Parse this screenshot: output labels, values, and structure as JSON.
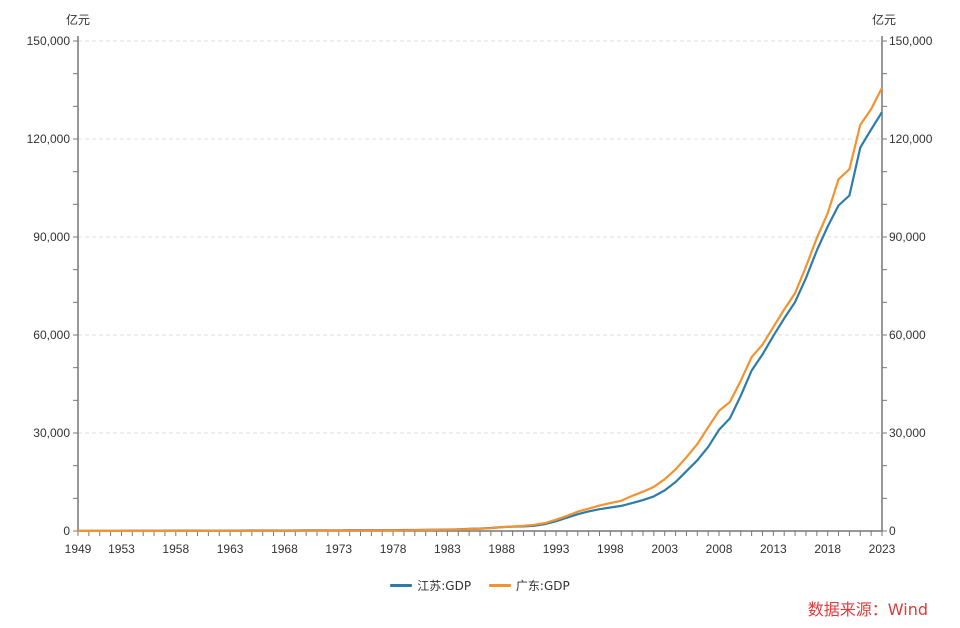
{
  "chart_data": {
    "type": "line",
    "yunit_left": "亿元",
    "yunit_right": "亿元",
    "ylim": [
      0,
      150000
    ],
    "yticks": [
      "0",
      "30,000",
      "60,000",
      "90,000",
      "120,000",
      "150,000"
    ],
    "ytick_values": [
      0,
      30000,
      60000,
      90000,
      120000,
      150000
    ],
    "xlim": [
      1949,
      2023
    ],
    "xticks": [
      "1949",
      "1953",
      "1958",
      "1963",
      "1968",
      "1973",
      "1978",
      "1983",
      "1988",
      "1993",
      "1998",
      "2003",
      "2008",
      "2013",
      "2018",
      "2023"
    ],
    "grid": true,
    "legend_position": "bottom-center",
    "series": [
      {
        "name": "江苏:GDP",
        "color": "#2e7ca8",
        "values": [
          36,
          46,
          55,
          66,
          75,
          78,
          84,
          89,
          94,
          109,
          120,
          114,
          105,
          103,
          110,
          123,
          138,
          152,
          140,
          135,
          157,
          181,
          195,
          208,
          224,
          232,
          250,
          242,
          254,
          249,
          298,
          320,
          350,
          390,
          438,
          518,
          652,
          744,
          922,
          1209,
          1322,
          1417,
          1601,
          2136,
          2998,
          4057,
          5155,
          6004,
          6680,
          7200,
          7698,
          8554,
          9457,
          10607,
          12443,
          15004,
          18306,
          21645,
          25741,
          30982,
          34457,
          41425,
          49110,
          54058,
          59753,
          65088,
          70116,
          77388,
          85870,
          93208,
          99632,
          102719,
          117392,
          122876,
          128222
        ]
      },
      {
        "name": "广东:GDP",
        "color": "#f3922f",
        "values": [
          20,
          24,
          29,
          34,
          37,
          40,
          42,
          45,
          49,
          53,
          60,
          61,
          55,
          54,
          58,
          65,
          73,
          82,
          80,
          76,
          84,
          95,
          104,
          109,
          117,
          126,
          129,
          132,
          137,
          186,
          209,
          250,
          290,
          340,
          368,
          458,
          577,
          667,
          847,
          1155,
          1381,
          1559,
          1893,
          2448,
          3469,
          4619,
          5934,
          6835,
          7775,
          8531,
          9250,
          10741,
          12039,
          13502,
          15845,
          18865,
          22557,
          26588,
          31777,
          36797,
          39483,
          46013,
          53210,
          57068,
          62475,
          67810,
          72813,
          80855,
          89705,
          97278,
          107671,
          110761,
          124370,
          129119,
          135673
        ]
      }
    ]
  },
  "source": "数据来源：Wind"
}
